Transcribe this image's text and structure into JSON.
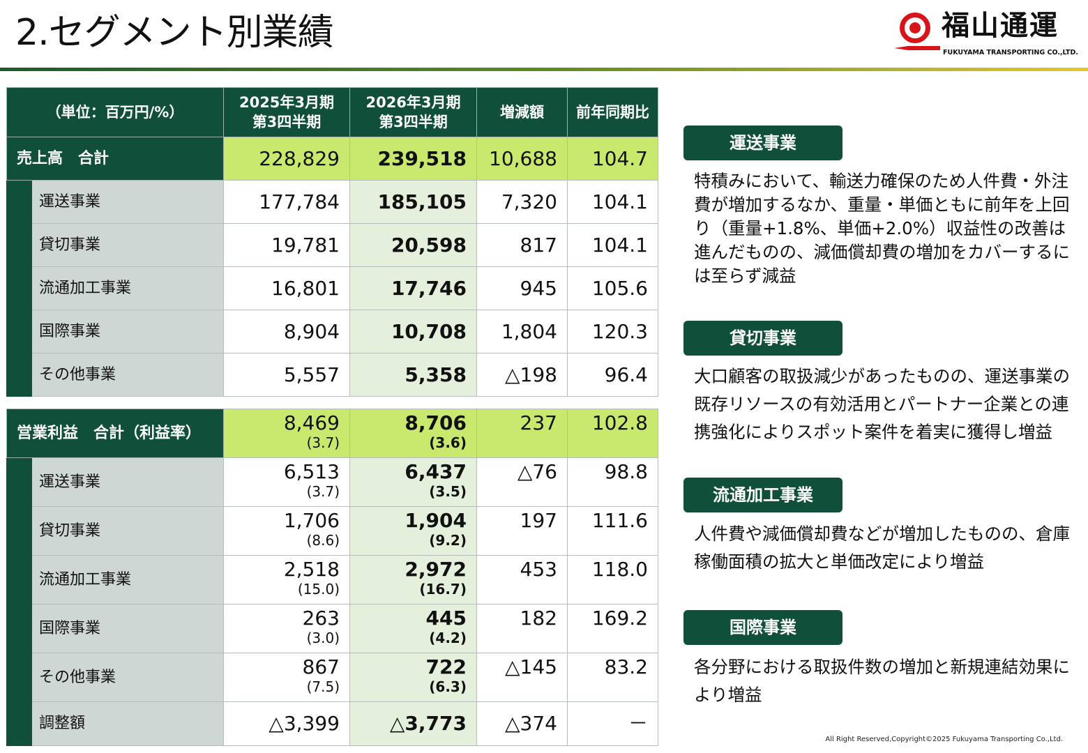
{
  "title": "2.セグメント別業績",
  "logo": {
    "kanji": "福山通運",
    "english": "FUKUYAMA TRANSPORTING CO.,LTD."
  },
  "colors": {
    "dark_green": "#10503a",
    "lime": "#c8e86e",
    "label_gray": "#cfd7d5",
    "current_col": "#e4f0dc",
    "logo_red": "#d8141b"
  },
  "table": {
    "unit_label": "（単位：百万円/%）",
    "headers": [
      "2025年3月期\n第3四半期",
      "2026年3月期\n第3四半期",
      "増減額",
      "前年同期比"
    ],
    "sales": {
      "total": {
        "label": "売上高　合計",
        "values": [
          "228,829",
          "239,518",
          "10,688",
          "104.7"
        ]
      },
      "rows": [
        {
          "label": "運送事業",
          "values": [
            "177,784",
            "185,105",
            "7,320",
            "104.1"
          ]
        },
        {
          "label": "貸切事業",
          "values": [
            "19,781",
            "20,598",
            "817",
            "104.1"
          ]
        },
        {
          "label": "流通加工事業",
          "values": [
            "16,801",
            "17,746",
            "945",
            "105.6"
          ]
        },
        {
          "label": "国際事業",
          "values": [
            "8,904",
            "10,708",
            "1,804",
            "120.3"
          ]
        },
        {
          "label": "その他事業",
          "values": [
            "5,557",
            "5,358",
            "△198",
            "96.4"
          ]
        }
      ]
    },
    "profit": {
      "total": {
        "label": "営業利益　合計（利益率）",
        "values": [
          "8,469",
          "8,706",
          "237",
          "102.8"
        ],
        "rates": [
          "(3.7)",
          "(3.6)"
        ]
      },
      "rows": [
        {
          "label": "運送事業",
          "values": [
            "6,513",
            "6,437",
            "△76",
            "98.8"
          ],
          "rates": [
            "(3.7)",
            "(3.5)"
          ]
        },
        {
          "label": "貸切事業",
          "values": [
            "1,706",
            "1,904",
            "197",
            "111.6"
          ],
          "rates": [
            "(8.6)",
            "(9.2)"
          ]
        },
        {
          "label": "流通加工事業",
          "values": [
            "2,518",
            "2,972",
            "453",
            "118.0"
          ],
          "rates": [
            "(15.0)",
            "(16.7)"
          ]
        },
        {
          "label": "国際事業",
          "values": [
            "263",
            "445",
            "182",
            "169.2"
          ],
          "rates": [
            "(3.0)",
            "(4.2)"
          ]
        },
        {
          "label": "その他事業",
          "values": [
            "867",
            "722",
            "△145",
            "83.2"
          ],
          "rates": [
            "(7.5)",
            "(6.3)"
          ]
        },
        {
          "label": "調整額",
          "values": [
            "△3,399",
            "△3,773",
            "△374",
            "－"
          ]
        }
      ]
    }
  },
  "sections": [
    {
      "heading": "運送事業",
      "text": "特積みにおいて、輸送力確保のため人件費・外注費が増加するなか、重量・単価ともに前年を上回り（重量+1.8%、単価+2.0%）収益性の改善は進んだものの、減価償却費の増加をカバーするには至らず減益"
    },
    {
      "heading": "貸切事業",
      "text": "大口顧客の取扱減少があったものの、運送事業の既存リソースの有効活用とパートナー企業との連携強化によりスポット案件を着実に獲得し増益"
    },
    {
      "heading": "流通加工事業",
      "text": "人件費や減価償却費などが増加したものの、倉庫稼働面積の拡大と単価改定により増益"
    },
    {
      "heading": "国際事業",
      "text": "各分野における取扱件数の増加と新規連結効果により増益"
    }
  ],
  "copyright": "All Right Reserved,Copyright©2025 Fukuyama Transporting Co.,Ltd."
}
